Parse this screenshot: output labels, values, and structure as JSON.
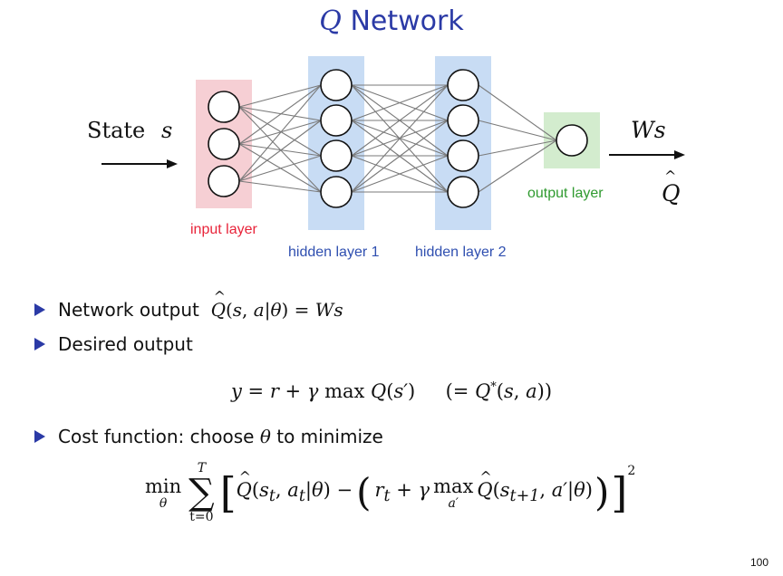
{
  "title": {
    "q": "Q",
    "rest": "Network"
  },
  "diagram": {
    "state_label": "State",
    "state_var": "s",
    "output_top": "Ws",
    "output_bottom": "Q",
    "layers": {
      "input": "input layer",
      "hidden1": "hidden layer 1",
      "hidden2": "hidden layer 2",
      "output": "output layer"
    },
    "colors": {
      "input": "#f6cfd4",
      "hidden": "#c8dcf4",
      "output": "#d3ecce",
      "input_text": "#e8243a",
      "hidden_text": "#2f4fb0",
      "output_text": "#2f9a2f",
      "accent": "#2b3aa6"
    }
  },
  "bullets": [
    {
      "lead": "Network output",
      "math": "Q(s, a|θ) = Ws"
    },
    {
      "lead": "Desired output",
      "math": ""
    },
    {
      "lead": "Cost function: choose",
      "mid": "θ",
      "tail": "to minimize"
    }
  ],
  "eq1": {
    "lhs": "y = r + γ max Q(s′)",
    "rhs": "(= Q*(s, a))"
  },
  "eq2": {
    "min": "min",
    "min_sub": "θ",
    "sum_top": "T",
    "sum_bot": "t=0",
    "body_left": "Q(s_t, a_t|θ) −",
    "inner": "r_t + γ max",
    "inner_sub": "a′",
    "inner_tail": "Q(s_{t+1}, a′|θ)",
    "exp": "2"
  },
  "page_number": "100"
}
